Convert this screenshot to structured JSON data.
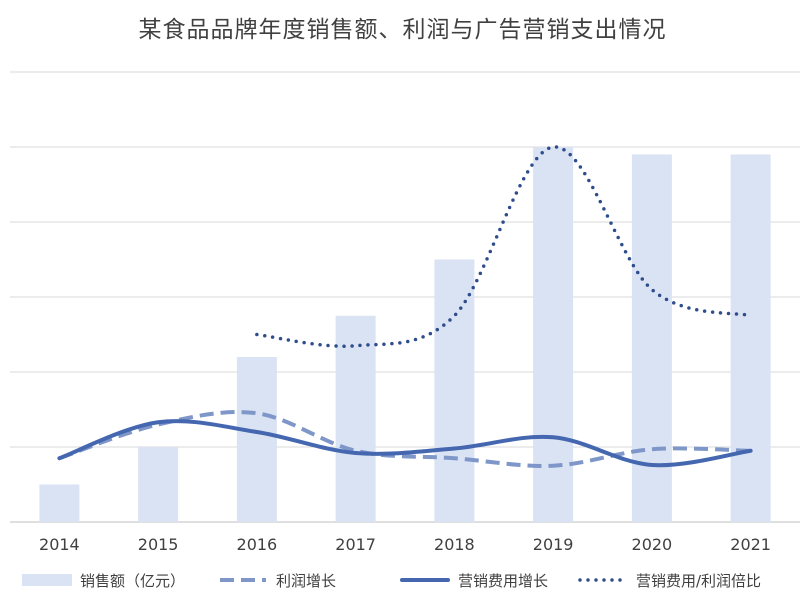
{
  "chart_data": {
    "type": "bar",
    "title": "某食品品牌年度销售额、利润与广告营销支出情况",
    "categories": [
      "2014",
      "2015",
      "2016",
      "2017",
      "2018",
      "2019",
      "2020",
      "2021"
    ],
    "grid": true,
    "y_axis_labels_shown": false,
    "ylim": [
      0,
      10
    ],
    "legend_position": "bottom",
    "series": [
      {
        "name": "销售额（亿元）",
        "type": "bar",
        "color": "#dae3f3",
        "values": [
          0.5,
          1.0,
          2.2,
          2.75,
          3.5,
          5.0,
          4.9,
          4.9
        ]
      },
      {
        "name": "利润增长",
        "type": "line",
        "style": "dashed",
        "color": "#7f96c9",
        "values": [
          0.85,
          1.3,
          1.45,
          0.95,
          0.85,
          0.75,
          0.97,
          0.95
        ]
      },
      {
        "name": "营销费用增长",
        "type": "line",
        "style": "solid",
        "color": "#4467b0",
        "values": [
          0.85,
          1.33,
          1.2,
          0.92,
          0.98,
          1.13,
          0.76,
          0.95
        ]
      },
      {
        "name": "营销费用/利润倍比",
        "type": "line",
        "style": "dotted",
        "color": "#2f4d8c",
        "values": [
          null,
          null,
          2.5,
          2.35,
          2.75,
          5.0,
          3.1,
          2.75
        ]
      }
    ]
  }
}
